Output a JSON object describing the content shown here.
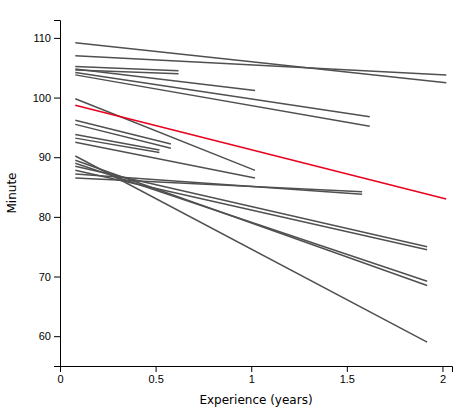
{
  "chart_data": {
    "type": "line",
    "xlabel": "Experience (years)",
    "ylabel": "Minute",
    "xlim": [
      0,
      2.05
    ],
    "ylim": [
      55,
      113
    ],
    "xticks": [
      0,
      0.5,
      1,
      1.5,
      2
    ],
    "yticks": [
      60,
      70,
      80,
      90,
      100,
      110
    ],
    "series": [
      {
        "x": [
          0.08,
          2.02
        ],
        "values": [
          109.2,
          102.5
        ],
        "color": "#505050"
      },
      {
        "x": [
          0.08,
          2.02
        ],
        "values": [
          107.0,
          103.8
        ],
        "color": "#505050"
      },
      {
        "x": [
          0.08,
          0.62
        ],
        "values": [
          105.2,
          104.5
        ],
        "color": "#505050"
      },
      {
        "x": [
          0.08,
          0.62
        ],
        "values": [
          104.6,
          104.0
        ],
        "color": "#505050"
      },
      {
        "x": [
          0.08,
          1.02
        ],
        "values": [
          104.8,
          101.2
        ],
        "color": "#505050"
      },
      {
        "x": [
          0.08,
          1.62
        ],
        "values": [
          104.2,
          96.8
        ],
        "color": "#505050"
      },
      {
        "x": [
          0.08,
          1.62
        ],
        "values": [
          103.8,
          95.2
        ],
        "color": "#505050"
      },
      {
        "x": [
          0.08,
          1.02
        ],
        "values": [
          99.8,
          87.8
        ],
        "color": "#505050"
      },
      {
        "x": [
          0.08,
          0.58
        ],
        "values": [
          96.2,
          92.2
        ],
        "color": "#505050"
      },
      {
        "x": [
          0.08,
          0.58
        ],
        "values": [
          95.5,
          91.5
        ],
        "color": "#505050"
      },
      {
        "x": [
          0.08,
          0.52
        ],
        "values": [
          93.8,
          91.2
        ],
        "color": "#505050"
      },
      {
        "x": [
          0.08,
          0.52
        ],
        "values": [
          93.2,
          90.8
        ],
        "color": "#505050"
      },
      {
        "x": [
          0.08,
          1.02
        ],
        "values": [
          92.5,
          86.5
        ],
        "color": "#505050"
      },
      {
        "x": [
          0.08,
          1.92
        ],
        "values": [
          90.2,
          59.0
        ],
        "color": "#505050"
      },
      {
        "x": [
          0.08,
          1.92
        ],
        "values": [
          89.5,
          68.5
        ],
        "color": "#505050"
      },
      {
        "x": [
          0.08,
          1.92
        ],
        "values": [
          89.0,
          69.2
        ],
        "color": "#505050"
      },
      {
        "x": [
          0.08,
          1.92
        ],
        "values": [
          88.5,
          75.0
        ],
        "color": "#505050"
      },
      {
        "x": [
          0.08,
          1.92
        ],
        "values": [
          87.8,
          74.5
        ],
        "color": "#505050"
      },
      {
        "x": [
          0.08,
          1.58
        ],
        "values": [
          87.2,
          83.8
        ],
        "color": "#505050"
      },
      {
        "x": [
          0.08,
          1.58
        ],
        "values": [
          86.5,
          84.2
        ],
        "color": "#505050"
      },
      {
        "x": [
          0.08,
          2.02
        ],
        "values": [
          98.7,
          83.0
        ],
        "color": "#e8001c"
      }
    ]
  }
}
